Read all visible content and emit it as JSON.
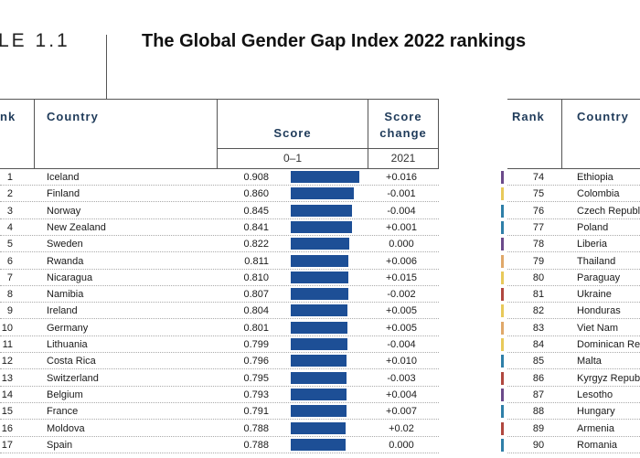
{
  "table_label": "LE 1.1",
  "title": "The Global Gender Gap Index 2022 rankings",
  "headers": {
    "rank": "nk",
    "country": "Country",
    "score": "Score",
    "score_change_line1": "Score",
    "score_change_line2": "change",
    "score_range": "0–1",
    "change_year": "2021",
    "right_rank": "Rank",
    "right_country": "Country"
  },
  "left_rows": [
    {
      "rank": "1",
      "country": "Iceland",
      "score": "0.908",
      "score_value": 0.908,
      "change": "+0.016"
    },
    {
      "rank": "2",
      "country": "Finland",
      "score": "0.860",
      "score_value": 0.86,
      "change": "-0.001"
    },
    {
      "rank": "3",
      "country": "Norway",
      "score": "0.845",
      "score_value": 0.845,
      "change": "-0.004"
    },
    {
      "rank": "4",
      "country": "New Zealand",
      "score": "0.841",
      "score_value": 0.841,
      "change": "+0.001"
    },
    {
      "rank": "5",
      "country": "Sweden",
      "score": "0.822",
      "score_value": 0.822,
      "change": "0.000"
    },
    {
      "rank": "6",
      "country": "Rwanda",
      "score": "0.811",
      "score_value": 0.811,
      "change": "+0.006"
    },
    {
      "rank": "7",
      "country": "Nicaragua",
      "score": "0.810",
      "score_value": 0.81,
      "change": "+0.015"
    },
    {
      "rank": "8",
      "country": "Namibia",
      "score": "0.807",
      "score_value": 0.807,
      "change": "-0.002"
    },
    {
      "rank": "9",
      "country": "Ireland",
      "score": "0.804",
      "score_value": 0.804,
      "change": "+0.005"
    },
    {
      "rank": "10",
      "country": "Germany",
      "score": "0.801",
      "score_value": 0.801,
      "change": "+0.005"
    },
    {
      "rank": "11",
      "country": "Lithuania",
      "score": "0.799",
      "score_value": 0.799,
      "change": "-0.004"
    },
    {
      "rank": "12",
      "country": "Costa Rica",
      "score": "0.796",
      "score_value": 0.796,
      "change": "+0.010"
    },
    {
      "rank": "13",
      "country": "Switzerland",
      "score": "0.795",
      "score_value": 0.795,
      "change": "-0.003"
    },
    {
      "rank": "14",
      "country": "Belgium",
      "score": "0.793",
      "score_value": 0.793,
      "change": "+0.004"
    },
    {
      "rank": "15",
      "country": "France",
      "score": "0.791",
      "score_value": 0.791,
      "change": "+0.007"
    },
    {
      "rank": "16",
      "country": "Moldova",
      "score": "0.788",
      "score_value": 0.788,
      "change": "+0.02"
    },
    {
      "rank": "17",
      "country": "Spain",
      "score": "0.788",
      "score_value": 0.788,
      "change": "0.000"
    }
  ],
  "right_rows": [
    {
      "rank": "74",
      "country": "Ethiopia",
      "color": "#6b4a8a"
    },
    {
      "rank": "75",
      "country": "Colombia",
      "color": "#e8c95a"
    },
    {
      "rank": "76",
      "country": "Czech Republic",
      "color": "#2f7fa8"
    },
    {
      "rank": "77",
      "country": "Poland",
      "color": "#2f7fa8"
    },
    {
      "rank": "78",
      "country": "Liberia",
      "color": "#6b4a8a"
    },
    {
      "rank": "79",
      "country": "Thailand",
      "color": "#e0a86a"
    },
    {
      "rank": "80",
      "country": "Paraguay",
      "color": "#e8c95a"
    },
    {
      "rank": "81",
      "country": "Ukraine",
      "color": "#b0473f"
    },
    {
      "rank": "82",
      "country": "Honduras",
      "color": "#e8c95a"
    },
    {
      "rank": "83",
      "country": "Viet Nam",
      "color": "#e0a86a"
    },
    {
      "rank": "84",
      "country": "Dominican Republic",
      "color": "#e8c95a"
    },
    {
      "rank": "85",
      "country": "Malta",
      "color": "#2f7fa8"
    },
    {
      "rank": "86",
      "country": "Kyrgyz Republic",
      "color": "#b0473f"
    },
    {
      "rank": "87",
      "country": "Lesotho",
      "color": "#6b4a8a"
    },
    {
      "rank": "88",
      "country": "Hungary",
      "color": "#2f7fa8"
    },
    {
      "rank": "89",
      "country": "Armenia",
      "color": "#b0473f"
    },
    {
      "rank": "90",
      "country": "Romania",
      "color": "#2f7fa8"
    }
  ],
  "bar_color": "#1d4f96"
}
